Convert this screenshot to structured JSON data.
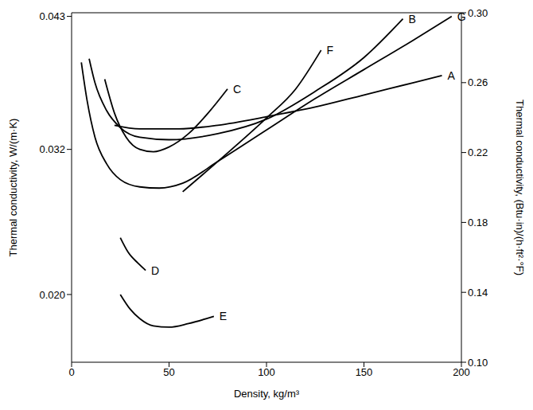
{
  "chart_data": {
    "type": "line",
    "x_label": "Density, kg/m³",
    "y_label": "Thermal conductivity, W/(m·K)",
    "y2_label": "Thermal conductivity, (Btu·in)/(h·ft²·°F)",
    "xlim": [
      0,
      200
    ],
    "xticks": [
      0,
      50,
      100,
      150,
      200
    ],
    "ylim": [
      0.0144,
      0.0433
    ],
    "yticks": [
      {
        "value": 0.02,
        "label": "0.020"
      },
      0.032,
      0.043
    ],
    "y2lim": [
      0.1,
      0.3
    ],
    "y2ticks": [
      {
        "value": 0.1,
        "label": "0.10"
      },
      0.14,
      0.18,
      0.22,
      0.26,
      {
        "value": 0.3,
        "label": "0.30"
      }
    ],
    "grid": false,
    "series": [
      {
        "name": "A",
        "color": "#000000",
        "x": [
          22,
          35,
          55,
          75,
          100,
          125,
          150,
          175,
          190
        ],
        "values": [
          0.034,
          0.0337,
          0.0337,
          0.034,
          0.0347,
          0.0355,
          0.0365,
          0.0375,
          0.0381
        ]
      },
      {
        "name": "B",
        "color": "#000000",
        "x": [
          9,
          12,
          18,
          25,
          35,
          50,
          75,
          100,
          125,
          150,
          170
        ],
        "values": [
          0.0395,
          0.0375,
          0.0352,
          0.0338,
          0.033,
          0.0328,
          0.0333,
          0.0345,
          0.0368,
          0.0396,
          0.0428
        ]
      },
      {
        "name": "C",
        "color": "#000000",
        "x": [
          17,
          22,
          28,
          35,
          42,
          50,
          60,
          70,
          80
        ],
        "values": [
          0.0378,
          0.035,
          0.033,
          0.032,
          0.0318,
          0.0322,
          0.0333,
          0.035,
          0.037
        ]
      },
      {
        "name": "D",
        "color": "#000000",
        "x": [
          25,
          29,
          34,
          38
        ],
        "values": [
          0.0247,
          0.0235,
          0.0226,
          0.022
        ]
      },
      {
        "name": "E",
        "color": "#000000",
        "x": [
          25,
          30,
          35,
          42,
          50,
          60,
          73
        ],
        "values": [
          0.02,
          0.0188,
          0.018,
          0.0174,
          0.0173,
          0.0176,
          0.0182
        ]
      },
      {
        "name": "F",
        "color": "#000000",
        "x": [
          57,
          75,
          100,
          115,
          128
        ],
        "values": [
          0.0285,
          0.031,
          0.0346,
          0.037,
          0.0402
        ]
      },
      {
        "name": "G",
        "color": "#000000",
        "x": [
          5,
          8,
          12,
          18,
          25,
          35,
          45,
          57,
          75,
          100,
          125,
          150,
          175,
          195
        ],
        "values": [
          0.0392,
          0.036,
          0.033,
          0.0308,
          0.0295,
          0.0289,
          0.0288,
          0.0292,
          0.031,
          0.0336,
          0.0362,
          0.0386,
          0.041,
          0.043
        ]
      }
    ]
  }
}
